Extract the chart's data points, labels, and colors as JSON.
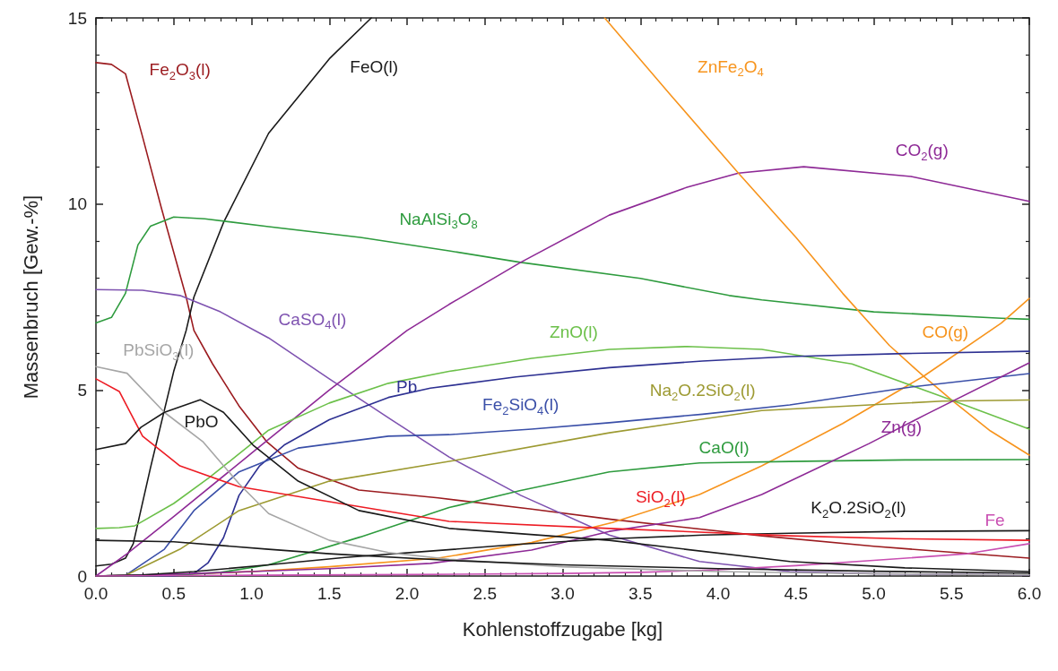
{
  "chart_data": {
    "type": "line",
    "xlabel": "Kohlenstoffzugabe [kg]",
    "ylabel": "Massenbruch [Gew.-%]",
    "xlim": [
      0,
      6
    ],
    "ylim": [
      0,
      15
    ],
    "xticks": [
      {
        "value": 0,
        "label": "0.0"
      },
      {
        "value": 0.5,
        "label": "0.5"
      },
      {
        "value": 1,
        "label": "1.0"
      },
      {
        "value": 1.5,
        "label": "1.5"
      },
      {
        "value": 2,
        "label": "2.0"
      },
      {
        "value": 2.5,
        "label": "2.5"
      },
      {
        "value": 3,
        "label": "3.0"
      },
      {
        "value": 3.5,
        "label": "3.5"
      },
      {
        "value": 4,
        "label": "4.0"
      },
      {
        "value": 4.5,
        "label": "4.5"
      },
      {
        "value": 5,
        "label": "5.0"
      },
      {
        "value": 5.5,
        "label": "5.5"
      },
      {
        "value": 6,
        "label": "6.0"
      }
    ],
    "yticks": [
      0,
      5,
      10,
      15
    ],
    "marker": "none",
    "line_style": "solid",
    "series": [
      {
        "name": "Fe$_{2}$O$_{3}$(l)",
        "color": "#9b1b1f",
        "x": [
          0,
          0.1,
          0.19,
          0.3,
          0.42,
          0.58,
          0.63,
          0.75,
          0.81,
          0.92,
          1.1,
          1.3,
          1.69,
          2.2,
          2.8,
          3.32,
          4.28,
          5,
          6
        ],
        "values": [
          13.8,
          13.75,
          13.5,
          11.8,
          9.9,
          7.5,
          6.6,
          5.7,
          5.3,
          4.57,
          3.6,
          2.9,
          2.31,
          2.1,
          1.8,
          1.52,
          1.08,
          0.8,
          0.48
        ]
      },
      {
        "name": "FeO(l)",
        "color": "#1a1a1a",
        "x": [
          0,
          0.1,
          0.19,
          0.24,
          0.35,
          0.5,
          0.58,
          0.63,
          0.82,
          1.11,
          1.5,
          1.77
        ],
        "values": [
          0.27,
          0.32,
          0.48,
          0.87,
          2.9,
          5.5,
          6.6,
          7.5,
          9.5,
          11.9,
          13.9,
          15
        ]
      },
      {
        "name": "NaAlSi$_{3}$O$_{8}$",
        "color": "#2e9b3e",
        "x": [
          0,
          0.1,
          0.19,
          0.27,
          0.35,
          0.5,
          0.7,
          1.11,
          1.7,
          2.27,
          2.73,
          3.5,
          4.07,
          4.28,
          5,
          5.82,
          6
        ],
        "values": [
          6.8,
          6.95,
          7.6,
          8.9,
          9.4,
          9.65,
          9.6,
          9.39,
          9.1,
          8.74,
          8.43,
          8,
          7.54,
          7.42,
          7.1,
          6.93,
          6.9
        ]
      },
      {
        "name": "CaSO$_{4}$(l)",
        "color": "#7e52b0",
        "x": [
          0,
          0.3,
          0.54,
          0.8,
          1.11,
          1.5,
          1.9,
          2.27,
          2.73,
          3.3,
          3.88,
          4.46,
          5,
          6
        ],
        "values": [
          7.7,
          7.68,
          7.54,
          7.1,
          6.4,
          5.3,
          4.2,
          3.2,
          2.17,
          1.1,
          0.39,
          0.12,
          0.06,
          0.03
        ]
      },
      {
        "name": "CO$_{2}$(g)",
        "color": "#8e2a96",
        "x": [
          0,
          0.2,
          0.5,
          1,
          1.5,
          2,
          2.27,
          2.73,
          3.3,
          3.8,
          4.13,
          4.55,
          5.24,
          6
        ],
        "values": [
          0,
          0.6,
          1.6,
          3.3,
          5,
          6.6,
          7.3,
          8.43,
          9.7,
          10.45,
          10.83,
          11,
          10.74,
          10.07
        ]
      },
      {
        "name": "ZnFe$_{2}$O$_{4}$",
        "color": "#f7941d",
        "x": [
          3.27,
          3.7,
          4.13,
          4.5,
          4.8,
          5.1,
          5.32,
          5.51,
          5.75,
          6
        ],
        "values": [
          15,
          12.9,
          10.83,
          9.1,
          7.6,
          6.2,
          5.37,
          4.7,
          3.9,
          3.25
        ]
      },
      {
        "name": "CO(g)",
        "color": "#f7941d",
        "x": [
          0,
          0.5,
          1,
          1.5,
          2.2,
          2.8,
          3.32,
          3.88,
          4.28,
          4.8,
          5.32,
          5.82,
          6
        ],
        "values": [
          0,
          0.03,
          0.12,
          0.25,
          0.48,
          0.9,
          1.44,
          2.19,
          2.96,
          4.1,
          5.37,
          6.8,
          7.46
        ]
      },
      {
        "name": "ZnO(l)",
        "color": "#6cc04a",
        "x": [
          0,
          0.15,
          0.25,
          0.5,
          0.73,
          1.11,
          1.5,
          1.88,
          2.27,
          2.8,
          3.3,
          3.8,
          4.28,
          4.86,
          5.44,
          6
        ],
        "values": [
          1.28,
          1.3,
          1.35,
          1.95,
          2.65,
          3.92,
          4.65,
          5.18,
          5.5,
          5.85,
          6.09,
          6.17,
          6.09,
          5.7,
          4.82,
          3.95
        ]
      },
      {
        "name": "Pb",
        "color": "#2e3192",
        "x": [
          0,
          0.5,
          0.63,
          0.72,
          0.82,
          0.92,
          1.05,
          1.21,
          1.5,
          1.88,
          2.15,
          2.7,
          3.3,
          3.9,
          4.46,
          5.2,
          6
        ],
        "values": [
          0,
          0,
          0.07,
          0.35,
          1.03,
          2.17,
          2.95,
          3.52,
          4.2,
          4.8,
          5.05,
          5.35,
          5.6,
          5.78,
          5.9,
          5.98,
          6.04
        ]
      },
      {
        "name": "Fe$_{2}$SiO$_{4}$(l)",
        "color": "#3a4fa8",
        "x": [
          0,
          0.19,
          0.44,
          0.63,
          0.92,
          1.3,
          1.88,
          2.27,
          2.8,
          3.3,
          3.9,
          4.46,
          5.24,
          6
        ],
        "values": [
          0,
          0.02,
          0.72,
          1.76,
          2.8,
          3.44,
          3.76,
          3.8,
          3.95,
          4.12,
          4.35,
          4.6,
          5.08,
          5.44
        ]
      },
      {
        "name": "Na$_{2}$O.2SiO$_{2}$(l)",
        "color": "#9d9a32",
        "x": [
          0,
          0.19,
          0.54,
          0.92,
          1.5,
          2.27,
          3.3,
          4.28,
          5.44,
          6
        ],
        "values": [
          0,
          0.02,
          0.72,
          1.76,
          2.55,
          3.08,
          3.85,
          4.45,
          4.7,
          4.73
        ]
      },
      {
        "name": "CaO(l)",
        "color": "#2e9b3e",
        "x": [
          0,
          0.5,
          0.8,
          1.11,
          1.7,
          2.27,
          2.73,
          3.3,
          3.88,
          4.46,
          5.2,
          6
        ],
        "values": [
          0,
          0.02,
          0.1,
          0.3,
          1.05,
          1.84,
          2.3,
          2.8,
          3.04,
          3.08,
          3.12,
          3.13
        ]
      },
      {
        "name": "Zn(g)",
        "color": "#8e2a96",
        "x": [
          0,
          0.5,
          1,
          1.5,
          2.15,
          2.8,
          3.3,
          3.88,
          4.28,
          4.97,
          5.33,
          6
        ],
        "values": [
          0,
          0.05,
          0.12,
          0.2,
          0.34,
          0.7,
          1.2,
          1.57,
          2.19,
          3.56,
          4.33,
          5.73
        ]
      },
      {
        "name": "K$_{2}$O.2SiO$_{2}$(l)",
        "color": "#1a1a1a",
        "x": [
          0,
          0.3,
          0.63,
          1.11,
          1.6,
          2.15,
          2.7,
          3.3,
          3.9,
          4.46,
          5.2,
          6
        ],
        "values": [
          0,
          0.03,
          0.12,
          0.3,
          0.5,
          0.67,
          0.85,
          1,
          1.1,
          1.15,
          1.2,
          1.22
        ]
      },
      {
        "name": "Fe",
        "color": "#c94fb2",
        "x": [
          0,
          1,
          2,
          3,
          3.5,
          4,
          4.5,
          5,
          5.6,
          6
        ],
        "values": [
          0,
          0.02,
          0.04,
          0.07,
          0.1,
          0.17,
          0.28,
          0.42,
          0.6,
          0.87
        ]
      },
      {
        "name": "SiO$_{2}$(l)",
        "color": "#ed1c24",
        "x": [
          0,
          0.15,
          0.3,
          0.54,
          0.92,
          1.5,
          2.27,
          3.3,
          4.46,
          5.2,
          6
        ],
        "values": [
          5.3,
          4.96,
          3.76,
          2.96,
          2.4,
          2,
          1.47,
          1.28,
          1.08,
          1,
          0.96
        ]
      },
      {
        "name": "PbSiO$_{3}$(l)",
        "color": "#a6a6a6",
        "x": [
          0,
          0.2,
          0.44,
          0.69,
          0.92,
          1.11,
          1.5,
          1.88,
          2.27,
          3,
          4,
          5,
          6
        ],
        "values": [
          5.63,
          5.45,
          4.4,
          3.6,
          2.48,
          1.68,
          0.96,
          0.63,
          0.45,
          0.25,
          0.12,
          0.06,
          0.03
        ]
      },
      {
        "name": "PbO",
        "color": "#1a1a1a",
        "x": [
          0,
          0.19,
          0.29,
          0.44,
          0.67,
          0.82,
          1.01,
          1.3,
          1.69,
          2.27,
          3.3,
          4.46,
          5.2,
          6
        ],
        "values": [
          3.4,
          3.56,
          4,
          4.4,
          4.74,
          4.4,
          3.52,
          2.55,
          1.76,
          1.28,
          0.96,
          0.39,
          0.22,
          0.12
        ]
      },
      {
        "color": "#1a1a1a",
        "x": [
          0,
          0.5,
          1.11,
          1.5,
          2.27,
          3,
          4,
          5,
          6
        ],
        "values": [
          0.96,
          0.92,
          0.72,
          0.6,
          0.42,
          0.3,
          0.2,
          0.13,
          0.08
        ]
      }
    ]
  }
}
